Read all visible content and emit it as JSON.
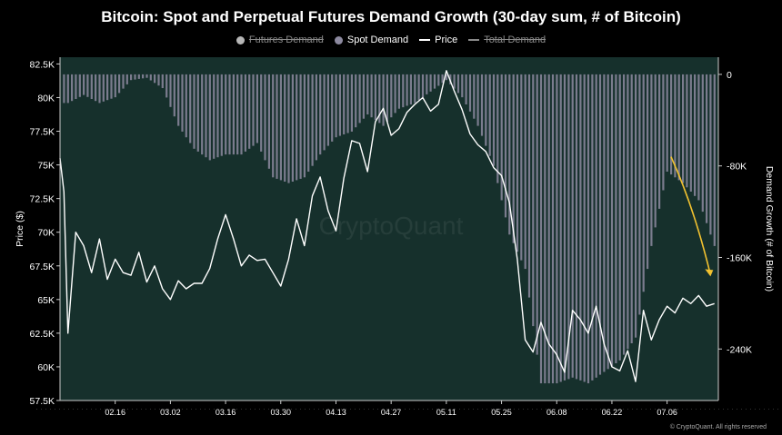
{
  "chart_data": {
    "type": "bar",
    "title": "Bitcoin: Spot and Perpetual Futures Demand Growth (30-day sum, # of Bitcoin)",
    "ylabel_left": "Price ($)",
    "ylabel_right": "Demand Growth (# of Bitcoin)",
    "credit": "© CryptoQuant. All rights reserved",
    "watermark": "CryptoQuant",
    "legend": [
      {
        "name": "Futures Demand",
        "type": "dot",
        "color": "#b7b7b7",
        "hidden": true
      },
      {
        "name": "Spot Demand",
        "type": "dot",
        "color": "#8d8aa0",
        "hidden": false
      },
      {
        "name": "Price",
        "type": "line",
        "color": "#ffffff",
        "hidden": false
      },
      {
        "name": "Total Demand",
        "type": "line",
        "color": "#8a8a8a",
        "hidden": true
      }
    ],
    "left_axis": {
      "ticks": [
        57500,
        60000,
        62500,
        65000,
        67500,
        70000,
        72500,
        75000,
        77500,
        80000,
        82500
      ],
      "tick_labels": [
        "57.5K",
        "60K",
        "62.5K",
        "65K",
        "67.5K",
        "70K",
        "72.5K",
        "75K",
        "77.5K",
        "80K",
        "82.5K"
      ],
      "ylim": [
        57500,
        83000
      ]
    },
    "right_axis": {
      "ticks": [
        0,
        -80000,
        -160000,
        -240000
      ],
      "tick_labels": [
        "0",
        "-80K",
        "-160K",
        "-240K"
      ],
      "ylim": [
        -285000,
        15000
      ]
    },
    "x_axis": {
      "start": "2025-02-02",
      "end": "2025-07-19",
      "ticks": [
        "2025-02-16",
        "2025-03-02",
        "2025-03-16",
        "2025-03-30",
        "2025-04-13",
        "2025-04-27",
        "2025-05-11",
        "2025-05-25",
        "2025-06-08",
        "2025-06-22",
        "2025-07-06"
      ],
      "tick_labels": [
        "02.16",
        "03.02",
        "03.16",
        "03.30",
        "04.13",
        "04.27",
        "05.11",
        "05.25",
        "06.08",
        "06.22",
        "07.06"
      ]
    },
    "grid": false,
    "annotation": {
      "type": "arrow",
      "color": "#f2c230",
      "from": "2025-07-07",
      "to": "2025-07-17"
    },
    "spot_demand": {
      "dates": [
        "2025-02-04",
        "2025-02-08",
        "2025-02-12",
        "2025-02-16",
        "2025-02-20",
        "2025-02-24",
        "2025-02-28",
        "2025-03-04",
        "2025-03-08",
        "2025-03-12",
        "2025-03-16",
        "2025-03-20",
        "2025-03-24",
        "2025-03-28",
        "2025-04-01",
        "2025-04-05",
        "2025-04-09",
        "2025-04-13",
        "2025-04-17",
        "2025-04-21",
        "2025-04-25",
        "2025-04-29",
        "2025-05-03",
        "2025-05-07",
        "2025-05-11",
        "2025-05-15",
        "2025-05-19",
        "2025-05-23",
        "2025-05-27",
        "2025-05-31",
        "2025-06-04",
        "2025-06-08",
        "2025-06-12",
        "2025-06-16",
        "2025-06-20",
        "2025-06-24",
        "2025-06-28",
        "2025-07-02",
        "2025-07-06",
        "2025-07-10",
        "2025-07-14",
        "2025-07-18"
      ],
      "values": [
        -25000,
        -18000,
        -25000,
        -20000,
        -5000,
        -3000,
        -12000,
        -45000,
        -65000,
        -75000,
        -70000,
        -70000,
        -60000,
        -90000,
        -95000,
        -90000,
        -70000,
        -55000,
        -50000,
        -35000,
        -45000,
        -30000,
        -25000,
        -15000,
        -5000,
        -20000,
        -45000,
        -80000,
        -140000,
        -170000,
        -270000,
        -270000,
        -265000,
        -270000,
        -260000,
        -250000,
        -230000,
        -150000,
        -85000,
        -95000,
        -110000,
        -150000
      ]
    },
    "price": {
      "dates": [
        "2025-02-02",
        "2025-02-03",
        "2025-02-04",
        "2025-02-06",
        "2025-02-08",
        "2025-02-10",
        "2025-02-12",
        "2025-02-14",
        "2025-02-16",
        "2025-02-18",
        "2025-02-20",
        "2025-02-22",
        "2025-02-24",
        "2025-02-26",
        "2025-02-28",
        "2025-03-02",
        "2025-03-04",
        "2025-03-06",
        "2025-03-08",
        "2025-03-10",
        "2025-03-12",
        "2025-03-14",
        "2025-03-16",
        "2025-03-18",
        "2025-03-20",
        "2025-03-22",
        "2025-03-24",
        "2025-03-26",
        "2025-03-28",
        "2025-03-30",
        "2025-04-01",
        "2025-04-03",
        "2025-04-05",
        "2025-04-07",
        "2025-04-09",
        "2025-04-11",
        "2025-04-13",
        "2025-04-15",
        "2025-04-17",
        "2025-04-19",
        "2025-04-21",
        "2025-04-23",
        "2025-04-25",
        "2025-04-27",
        "2025-04-29",
        "2025-05-01",
        "2025-05-03",
        "2025-05-05",
        "2025-05-07",
        "2025-05-09",
        "2025-05-11",
        "2025-05-13",
        "2025-05-15",
        "2025-05-17",
        "2025-05-19",
        "2025-05-21",
        "2025-05-23",
        "2025-05-25",
        "2025-05-27",
        "2025-05-29",
        "2025-05-31",
        "2025-06-02",
        "2025-06-04",
        "2025-06-06",
        "2025-06-08",
        "2025-06-10",
        "2025-06-12",
        "2025-06-14",
        "2025-06-16",
        "2025-06-18",
        "2025-06-20",
        "2025-06-22",
        "2025-06-24",
        "2025-06-26",
        "2025-06-28",
        "2025-06-30",
        "2025-07-02",
        "2025-07-04",
        "2025-07-06",
        "2025-07-08",
        "2025-07-10",
        "2025-07-12",
        "2025-07-14",
        "2025-07-16",
        "2025-07-18"
      ],
      "values": [
        75500,
        73000,
        62500,
        70000,
        69000,
        67000,
        69500,
        66500,
        68000,
        67000,
        66800,
        68500,
        66300,
        67500,
        65800,
        65000,
        66400,
        65800,
        66200,
        66200,
        67300,
        69500,
        71300,
        69500,
        67500,
        68300,
        67900,
        68000,
        67000,
        66000,
        68000,
        71000,
        69000,
        72700,
        74100,
        71600,
        70100,
        74000,
        76800,
        76600,
        74500,
        78200,
        79200,
        77200,
        77700,
        78900,
        79500,
        80000,
        79000,
        79500,
        82000,
        80500,
        79100,
        77300,
        76500,
        76000,
        74800,
        74200,
        72200,
        68000,
        62000,
        61100,
        63300,
        61700,
        60900,
        59600,
        64200,
        63500,
        62500,
        64500,
        61700,
        60000,
        59700,
        61200,
        58900,
        64200,
        62000,
        63500,
        64500,
        64000,
        65100,
        64700,
        65300,
        64500,
        64700
      ]
    }
  }
}
